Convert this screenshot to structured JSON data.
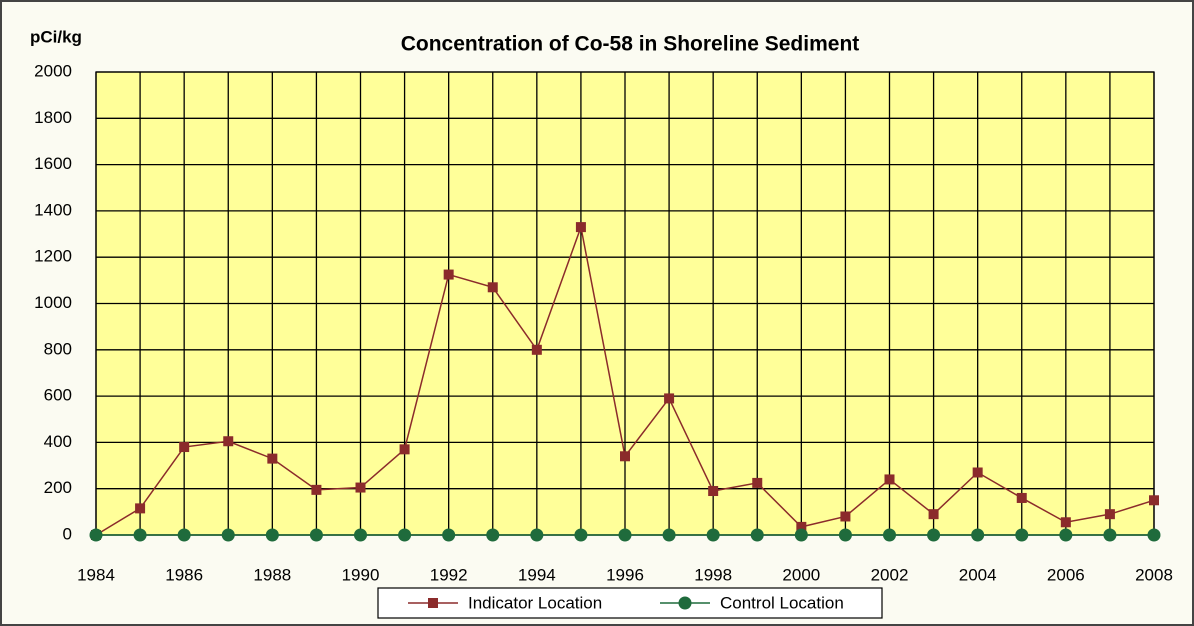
{
  "chart_data": {
    "type": "line",
    "title": "Concentration  of Co-58  in Shoreline Sediment",
    "y_label": "pCi/kg",
    "x": [
      1984,
      1985,
      1986,
      1987,
      1988,
      1989,
      1990,
      1991,
      1992,
      1993,
      1994,
      1995,
      1996,
      1997,
      1998,
      1999,
      2000,
      2001,
      2002,
      2003,
      2004,
      2005,
      2006,
      2007,
      2008
    ],
    "series": [
      {
        "name": "Indicator Location",
        "color": "#8b2b2b",
        "marker": "square",
        "values": [
          0,
          115,
          380,
          405,
          330,
          195,
          205,
          370,
          1125,
          1070,
          800,
          1330,
          340,
          590,
          190,
          225,
          35,
          80,
          240,
          90,
          270,
          160,
          55,
          90,
          150
        ]
      },
      {
        "name": "Control Location",
        "color": "#1f6b3c",
        "marker": "circle",
        "values": [
          0,
          0,
          0,
          0,
          0,
          0,
          0,
          0,
          0,
          0,
          0,
          0,
          0,
          0,
          0,
          0,
          0,
          0,
          0,
          0,
          0,
          0,
          0,
          0,
          0
        ]
      }
    ],
    "xlim": [
      1984,
      2008
    ],
    "xticks": [
      1984,
      1986,
      1988,
      1990,
      1992,
      1994,
      1996,
      1998,
      2000,
      2002,
      2004,
      2006,
      2008
    ],
    "ylim": [
      0,
      2000
    ],
    "yticks": [
      0,
      200,
      400,
      600,
      800,
      1000,
      1200,
      1400,
      1600,
      1800,
      2000
    ],
    "grid": true,
    "plot_background": "#ffff99",
    "legend": "bottom"
  }
}
